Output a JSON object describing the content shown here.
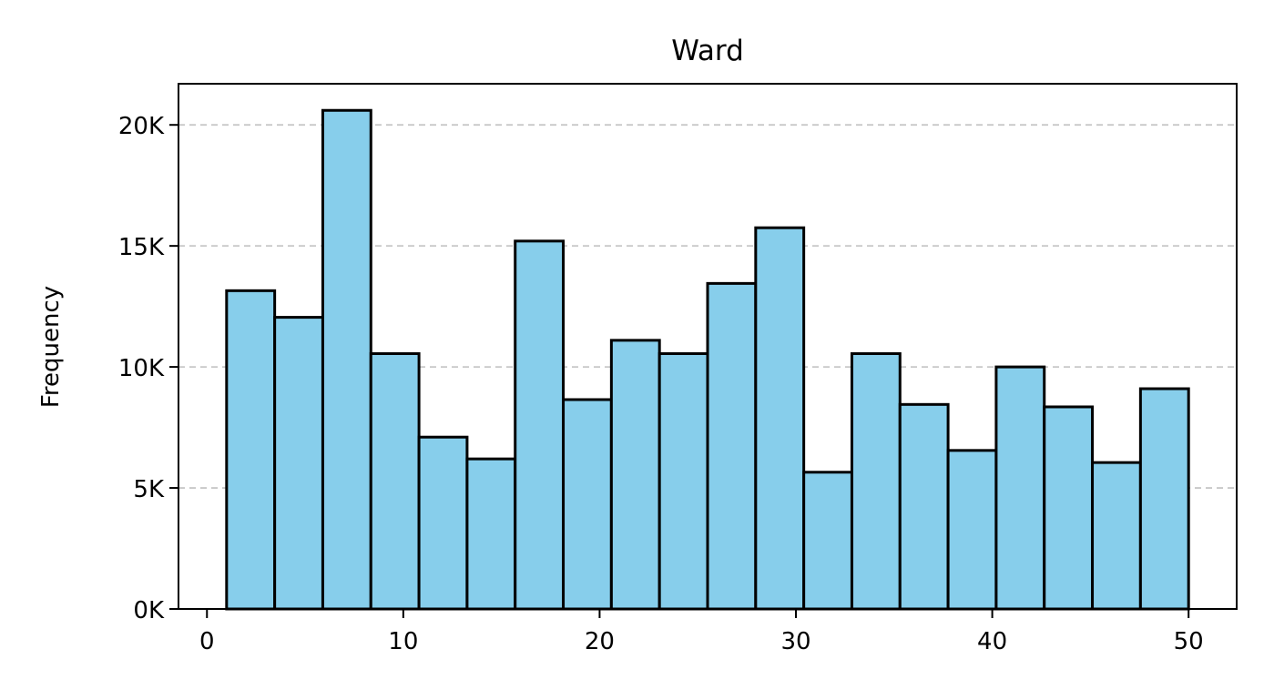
{
  "chart_data": {
    "type": "bar",
    "subtype": "histogram",
    "title": "Ward",
    "xlabel": "",
    "ylabel": "Frequency",
    "xlim": [
      -1.45,
      52.45
    ],
    "ylim": [
      0,
      21700
    ],
    "xticks": [
      0,
      10,
      20,
      30,
      40,
      50
    ],
    "xtick_labels": [
      "0",
      "10",
      "20",
      "30",
      "40",
      "50"
    ],
    "yticks": [
      0,
      5000,
      10000,
      15000,
      20000
    ],
    "ytick_labels": [
      "0K",
      "5K",
      "10K",
      "15K",
      "20K"
    ],
    "grid": {
      "axis": "y",
      "style": "dashed",
      "color": "#c8c8c8"
    },
    "bar_color": "#87ceeb",
    "edge_color": "#000000",
    "bins": [
      [
        1.0,
        3.45
      ],
      [
        3.45,
        5.9
      ],
      [
        5.9,
        8.35
      ],
      [
        8.35,
        10.8
      ],
      [
        10.8,
        13.25
      ],
      [
        13.25,
        15.7
      ],
      [
        15.7,
        18.15
      ],
      [
        18.15,
        20.6
      ],
      [
        20.6,
        23.05
      ],
      [
        23.05,
        25.5
      ],
      [
        25.5,
        27.95
      ],
      [
        27.95,
        30.4
      ],
      [
        30.4,
        32.85
      ],
      [
        32.85,
        35.3
      ],
      [
        35.3,
        37.75
      ],
      [
        37.75,
        40.2
      ],
      [
        40.2,
        42.65
      ],
      [
        42.65,
        45.1
      ],
      [
        45.1,
        47.55
      ],
      [
        47.55,
        50.0
      ]
    ],
    "values": [
      13150,
      12050,
      20600,
      10550,
      7100,
      6200,
      15200,
      8650,
      11100,
      10550,
      13450,
      15750,
      5650,
      10550,
      8450,
      6550,
      10000,
      8350,
      6050,
      9100
    ]
  }
}
